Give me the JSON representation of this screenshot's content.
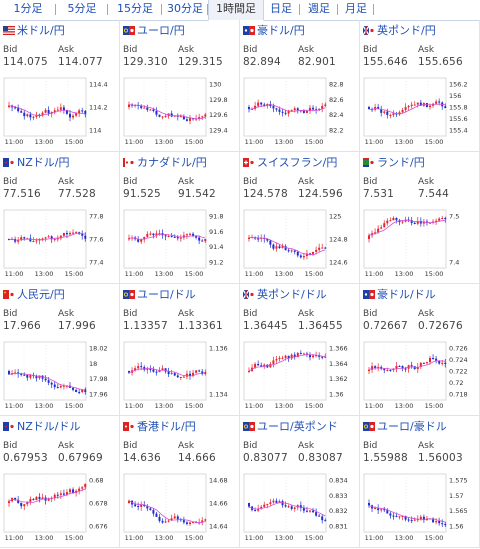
{
  "tabs": [
    {
      "label": "1分足",
      "active": false
    },
    {
      "label": "5分足",
      "active": false
    },
    {
      "label": "15分足",
      "active": false
    },
    {
      "label": "30分足",
      "active": false
    },
    {
      "label": "1時間足",
      "active": true
    },
    {
      "label": "日足",
      "active": false
    },
    {
      "label": "週足",
      "active": false
    },
    {
      "label": "月足",
      "active": false
    }
  ],
  "colors": {
    "up": "#e8252b",
    "down": "#1c2fd0",
    "ma": "#d64fd8",
    "grid": "#d8d8d8"
  },
  "cells": [
    {
      "title": "米ドル/円",
      "flag": "us-flag",
      "bid": "114.075",
      "ask": "114.077",
      "ticks": [
        "114.4",
        "114.2",
        "114"
      ],
      "xt": [
        "11:00",
        "13:00",
        "15:00"
      ],
      "trend": "down"
    },
    {
      "title": "ユーロ/円",
      "flag": "eu-flag",
      "bid": "129.310",
      "ask": "129.315",
      "ticks": [
        "130",
        "129.8",
        "129.6",
        "129.4"
      ],
      "xt": [
        "11:00",
        "13:00",
        "15:00"
      ],
      "trend": "down"
    },
    {
      "title": "豪ドル/円",
      "flag": "au-flag",
      "bid": "82.894",
      "ask": "82.901",
      "ticks": [
        "82.8",
        "82.6",
        "82.4",
        "82.2"
      ],
      "xt": [
        "11:00",
        "13:00",
        "15:00"
      ],
      "trend": "up"
    },
    {
      "title": "英ポンド/円",
      "flag": "gb-flag",
      "bid": "155.646",
      "ask": "155.656",
      "ticks": [
        "156.2",
        "156",
        "155.8",
        "155.6",
        "155.4"
      ],
      "xt": [
        "11:00",
        "13:00",
        "15:00"
      ],
      "trend": "down"
    },
    {
      "title": "NZドル/円",
      "flag": "nz-flag",
      "bid": "77.516",
      "ask": "77.528",
      "ticks": [
        "77.8",
        "77.6",
        "77.4"
      ],
      "xt": [
        "11:00",
        "13:00",
        "15:00"
      ],
      "trend": "flat"
    },
    {
      "title": "カナダドル/円",
      "flag": "ca-flag",
      "bid": "91.525",
      "ask": "91.542",
      "ticks": [
        "91.8",
        "91.6",
        "91.4",
        "91.2"
      ],
      "xt": [
        "11:00",
        "13:00",
        "15:00"
      ],
      "trend": "flat"
    },
    {
      "title": "スイスフラン/円",
      "flag": "ch-flag",
      "bid": "124.578",
      "ask": "124.596",
      "ticks": [
        "125",
        "124.8",
        "124.6"
      ],
      "xt": [
        "11:00",
        "13:00",
        "15:00"
      ],
      "trend": "down"
    },
    {
      "title": "ランド/円",
      "flag": "za-flag",
      "bid": "7.531",
      "ask": "7.544",
      "ticks": [
        "7.5",
        "7.4"
      ],
      "xt": [
        "11:00",
        "13:00",
        "15:00"
      ],
      "trend": "up"
    },
    {
      "title": "人民元/円",
      "flag": "cn-flag",
      "bid": "17.966",
      "ask": "17.996",
      "ticks": [
        "18.02",
        "18",
        "17.98",
        "17.96"
      ],
      "xt": [
        "11:00",
        "13:00",
        "15:00"
      ],
      "trend": "down"
    },
    {
      "title": "ユーロ/ドル",
      "flag": "eu-flag",
      "bid": "1.13357",
      "ask": "1.13361",
      "ticks": [
        "1.136",
        "1.134"
      ],
      "xt": [
        "11:00",
        "13:00",
        "15:00"
      ],
      "trend": "flat"
    },
    {
      "title": "英ポンド/ドル",
      "flag": "gb-flag",
      "bid": "1.36445",
      "ask": "1.36455",
      "ticks": [
        "1.366",
        "1.364",
        "1.362",
        "1.36"
      ],
      "xt": [
        "11:00",
        "13:00",
        "15:00"
      ],
      "trend": "up"
    },
    {
      "title": "豪ドル/ドル",
      "flag": "au-flag",
      "bid": "0.72667",
      "ask": "0.72676",
      "ticks": [
        "0.726",
        "0.724",
        "0.722",
        "0.72",
        "0.718"
      ],
      "xt": [
        "11:00",
        "13:00",
        "15:00"
      ],
      "trend": "up"
    },
    {
      "title": "NZドル/ドル",
      "flag": "nz-flag",
      "bid": "0.67953",
      "ask": "0.67969",
      "ticks": [
        "0.68",
        "0.678",
        "0.676"
      ],
      "xt": [
        "11:00",
        "13:00",
        "15:00"
      ],
      "trend": "flat"
    },
    {
      "title": "香港ドル/円",
      "flag": "hk-flag",
      "bid": "14.636",
      "ask": "14.666",
      "ticks": [
        "14.68",
        "14.66",
        "14.64"
      ],
      "xt": [
        "11:00",
        "13:00",
        "15:00"
      ],
      "trend": "down"
    },
    {
      "title": "ユーロ/英ポンド",
      "flag": "eu-flag",
      "bid": "0.83077",
      "ask": "0.83087",
      "ticks": [
        "0.834",
        "0.833",
        "0.832",
        "0.831"
      ],
      "xt": [
        "11:00",
        "13:00",
        "15:00"
      ],
      "trend": "down"
    },
    {
      "title": "ユーロ/豪ドル",
      "flag": "eu-flag",
      "bid": "1.55988",
      "ask": "1.56003",
      "ticks": [
        "1.575",
        "1.57",
        "1.565",
        "1.56"
      ],
      "xt": [
        "11:00",
        "13:00",
        "15:00"
      ],
      "trend": "down"
    }
  ],
  "labels": {
    "bid": "Bid",
    "ask": "Ask"
  }
}
